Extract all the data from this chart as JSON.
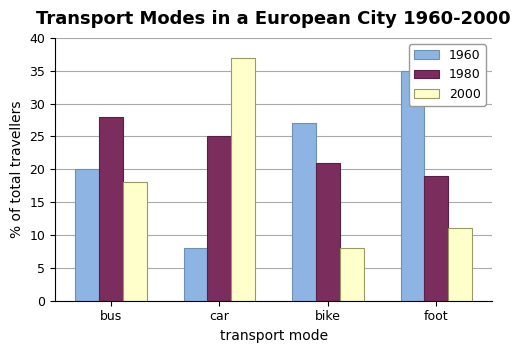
{
  "title": "Transport Modes in a European City 1960-2000",
  "categories": [
    "bus",
    "car",
    "bike",
    "foot"
  ],
  "years": [
    "1960",
    "1980",
    "2000"
  ],
  "values": {
    "1960": [
      20,
      8,
      27,
      35
    ],
    "1980": [
      28,
      25,
      21,
      19
    ],
    "2000": [
      18,
      37,
      8,
      11
    ]
  },
  "bar_colors": {
    "1960": "#8db4e2",
    "1980": "#7b2d5e",
    "2000": "#ffffcc"
  },
  "bar_edge_colors": {
    "1960": "#7090b0",
    "1980": "#5a1f45",
    "2000": "#999966"
  },
  "xlabel": "transport mode",
  "ylabel": "% of total travellers",
  "ylim": [
    0,
    40
  ],
  "yticks": [
    0,
    5,
    10,
    15,
    20,
    25,
    30,
    35,
    40
  ],
  "legend_loc": "upper right",
  "title_fontsize": 13,
  "label_fontsize": 10,
  "tick_fontsize": 9,
  "background_color": "#ffffff",
  "plot_bg_color": "#ffffff",
  "grid_color": "#aaaaaa"
}
